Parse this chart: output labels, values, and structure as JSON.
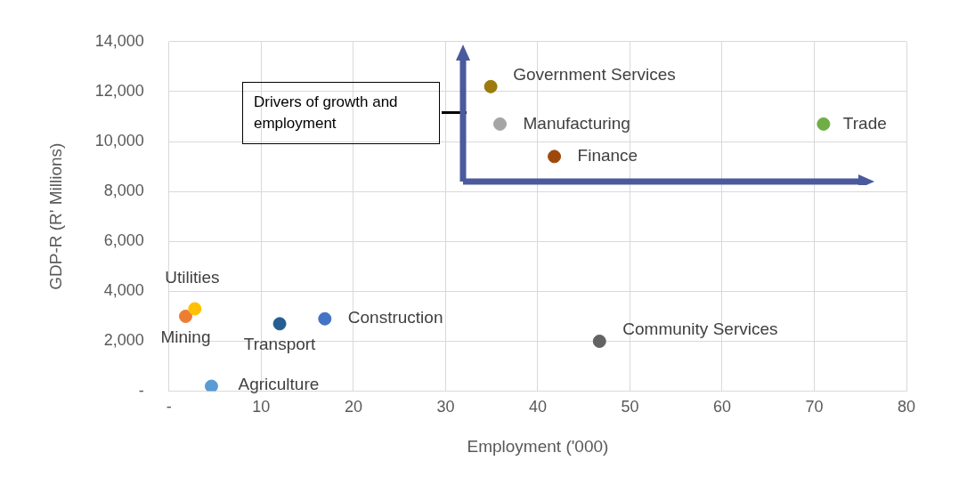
{
  "chart_data": {
    "type": "scatter",
    "xlabel": "Employment ('000)",
    "ylabel": "GDP-R (R' Millions)",
    "xlim": [
      0,
      80
    ],
    "xticks": [
      {
        "value": 0,
        "label": "-"
      },
      10,
      20,
      30,
      40,
      50,
      60,
      70,
      80
    ],
    "ylim": [
      0,
      14000
    ],
    "yticks": [
      {
        "value": 0,
        "label": "-"
      },
      {
        "value": 2000,
        "label": "2,000"
      },
      {
        "value": 4000,
        "label": "4,000"
      },
      {
        "value": 6000,
        "label": "6,000"
      },
      {
        "value": 8000,
        "label": "8,000"
      },
      {
        "value": 10000,
        "label": "10,000"
      },
      {
        "value": 12000,
        "label": "12,000"
      },
      {
        "value": 14000,
        "label": "14,000"
      }
    ],
    "grid": true,
    "legend": false,
    "marker": "circle",
    "annotations": [
      "Drivers of growth and employment"
    ],
    "series": [
      {
        "name": "Government Services",
        "color": "#9c7a0c",
        "x": [
          34.9
        ],
        "values": [
          12200
        ]
      },
      {
        "name": "Manufacturing",
        "color": "#a5a5a5",
        "x": [
          35.9
        ],
        "values": [
          10700
        ]
      },
      {
        "name": "Trade",
        "color": "#70ad47",
        "x": [
          71.0
        ],
        "values": [
          10700
        ]
      },
      {
        "name": "Finance",
        "color": "#9e480e",
        "x": [
          41.8
        ],
        "values": [
          9400
        ]
      },
      {
        "name": "Community Services",
        "color": "#636363",
        "x": [
          46.7
        ],
        "values": [
          2000
        ]
      },
      {
        "name": "Construction",
        "color": "#4472c4",
        "x": [
          16.9
        ],
        "values": [
          2900
        ]
      },
      {
        "name": "Transport",
        "color": "#255e91",
        "x": [
          12.0
        ],
        "values": [
          2700
        ]
      },
      {
        "name": "Utilities",
        "color": "#ffc000",
        "x": [
          2.8
        ],
        "values": [
          3300
        ]
      },
      {
        "name": "Mining",
        "color": "#ed7d31",
        "x": [
          1.8
        ],
        "values": [
          3000
        ]
      },
      {
        "name": "Agriculture",
        "color": "#5b9bd5",
        "x": [
          4.6
        ],
        "values": [
          200
        ]
      }
    ]
  }
}
